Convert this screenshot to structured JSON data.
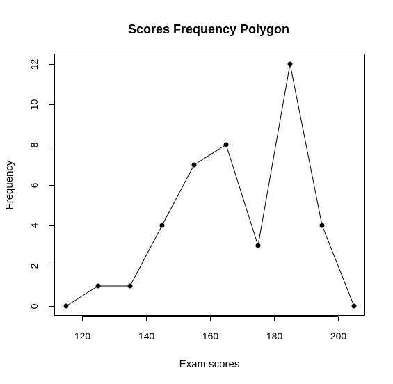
{
  "chart_data": {
    "type": "line",
    "title": "Scores Frequency Polygon",
    "xlabel": "Exam scores",
    "ylabel": "Frequency",
    "x": [
      115,
      125,
      135,
      145,
      155,
      165,
      175,
      185,
      195,
      205
    ],
    "series": [
      {
        "values": [
          0,
          1,
          1,
          4,
          7,
          8,
          3,
          12,
          4,
          0
        ]
      }
    ],
    "xlim": [
      115,
      205
    ],
    "ylim": [
      0,
      12
    ],
    "xticks": [
      120,
      140,
      160,
      180,
      200
    ],
    "yticks": [
      0,
      2,
      4,
      6,
      8,
      10,
      12
    ],
    "markers": "filled-circle",
    "grid": false,
    "legend": "none",
    "color": "#000000"
  }
}
